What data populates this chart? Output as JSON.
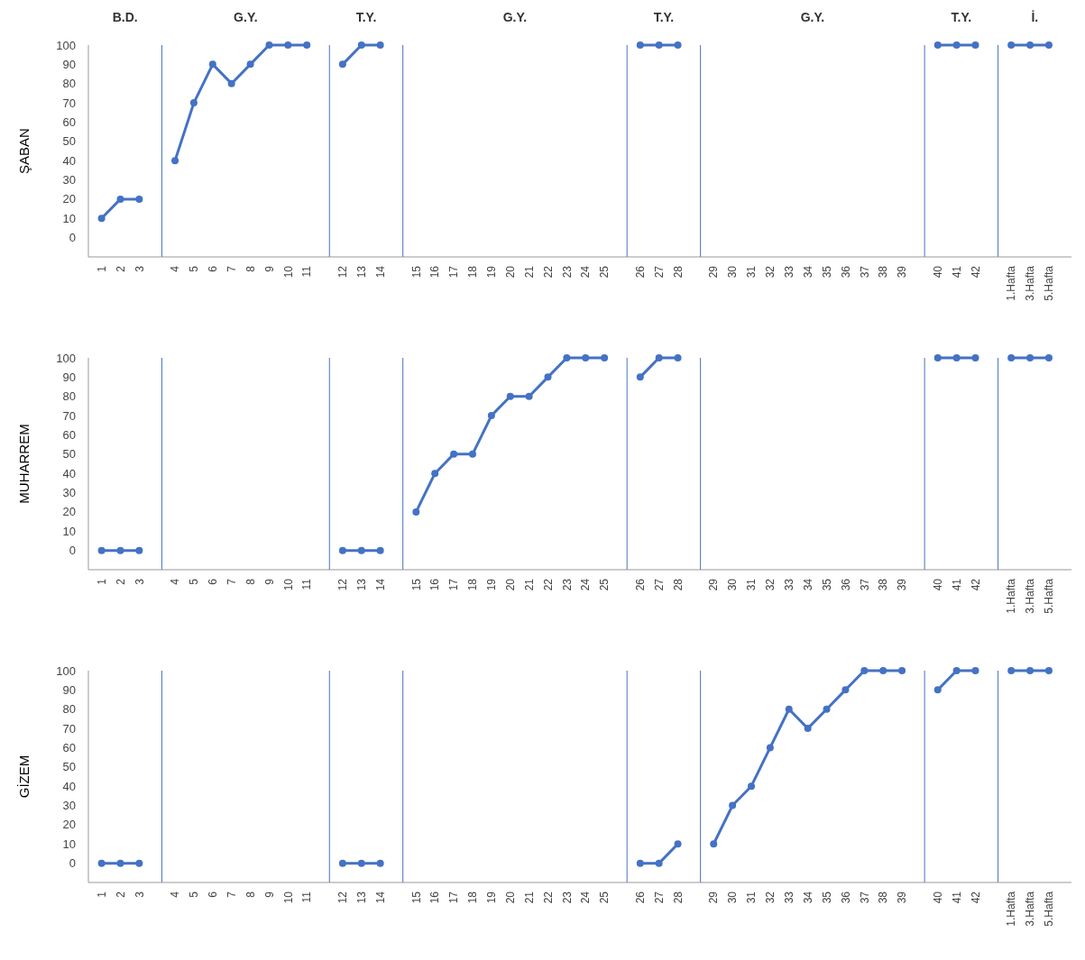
{
  "chart_data": [
    {
      "type": "line",
      "title": "B.D.",
      "ylabel": "ŞABAN",
      "categories": [
        "1",
        "2",
        "3"
      ],
      "series": [
        {
          "color": "#4472c4",
          "values": [
            10,
            20,
            20
          ]
        }
      ],
      "ylim": [
        -10,
        100
      ],
      "yticks": [
        0,
        10,
        20,
        30,
        40,
        50,
        60,
        70,
        80,
        90,
        100
      ],
      "marker": "circle"
    },
    {
      "type": "line",
      "title": "G.Y.",
      "categories": [
        "4",
        "5",
        "6",
        "7",
        "8",
        "9",
        "10",
        "11"
      ],
      "series": [
        {
          "color": "#4472c4",
          "values": [
            40,
            70,
            90,
            80,
            90,
            100,
            100,
            100
          ]
        }
      ],
      "ylim": [
        -10,
        100
      ],
      "yticks": [
        0,
        10,
        20,
        30,
        40,
        50,
        60,
        70,
        80,
        90,
        100
      ],
      "marker": "circle",
      "tick_labels": "x"
    },
    {
      "type": "line",
      "title": "T.Y.",
      "categories": [
        "12",
        "13",
        "14"
      ],
      "series": [
        {
          "color": "#4472c4",
          "values": [
            90,
            100,
            100
          ]
        }
      ],
      "ylim": [
        -10,
        100
      ],
      "yticks": [
        0,
        10,
        20,
        30,
        40,
        50,
        60,
        70,
        80,
        90,
        100
      ],
      "marker": "circle",
      "tick_labels": "x"
    },
    {
      "type": "line",
      "title": "G.Y.",
      "categories": [
        "15",
        "16",
        "17",
        "18",
        "19",
        "20",
        "21",
        "22",
        "23",
        "24",
        "25"
      ],
      "series": [
        {
          "color": "#4472c4",
          "values": [
            null,
            null,
            null,
            null,
            null,
            null,
            null,
            null,
            null,
            null,
            null
          ]
        }
      ],
      "ylim": [
        -10,
        100
      ],
      "yticks": [
        0,
        10,
        20,
        30,
        40,
        50,
        60,
        70,
        80,
        90,
        100
      ],
      "marker": "circle",
      "tick_labels": "x"
    },
    {
      "type": "line",
      "title": "T.Y.",
      "categories": [
        "26",
        "27",
        "28"
      ],
      "series": [
        {
          "color": "#4472c4",
          "values": [
            100,
            100,
            100
          ]
        }
      ],
      "ylim": [
        -10,
        100
      ],
      "yticks": [
        0,
        10,
        20,
        30,
        40,
        50,
        60,
        70,
        80,
        90,
        100
      ],
      "marker": "circle",
      "tick_labels": "x"
    },
    {
      "type": "line",
      "title": "G.Y.",
      "categories": [
        "29",
        "30",
        "31",
        "32",
        "33",
        "34",
        "35",
        "36",
        "37",
        "38",
        "39"
      ],
      "series": [
        {
          "color": "#4472c4",
          "values": [
            null,
            null,
            null,
            null,
            null,
            null,
            null,
            null,
            null,
            null,
            null
          ]
        }
      ],
      "ylim": [
        -10,
        100
      ],
      "yticks": [
        0,
        10,
        20,
        30,
        40,
        50,
        60,
        70,
        80,
        90,
        100
      ],
      "marker": "circle",
      "tick_labels": "x"
    },
    {
      "type": "line",
      "title": "T.Y.",
      "categories": [
        "40",
        "41",
        "42"
      ],
      "series": [
        {
          "color": "#4472c4",
          "values": [
            100,
            100,
            100
          ]
        }
      ],
      "ylim": [
        -10,
        100
      ],
      "yticks": [
        0,
        10,
        20,
        30,
        40,
        50,
        60,
        70,
        80,
        90,
        100
      ],
      "marker": "circle",
      "tick_labels": "x"
    },
    {
      "type": "line",
      "title": "İ.",
      "categories": [
        "1.Hafta",
        "3.Hafta",
        "5.Hafta"
      ],
      "series": [
        {
          "color": "#4472c4",
          "values": [
            100,
            100,
            100
          ]
        }
      ],
      "ylim": [
        -10,
        100
      ],
      "yticks": [
        0,
        10,
        20,
        30,
        40,
        50,
        60,
        70,
        80,
        90,
        100
      ],
      "marker": "circle",
      "tick_labels": "x"
    },
    {
      "type": "line",
      "ylabel": "MUHARREM",
      "categories": [
        "1",
        "2",
        "3"
      ],
      "series": [
        {
          "color": "#4472c4",
          "values": [
            0,
            0,
            0
          ]
        }
      ],
      "ylim": [
        -10,
        100
      ],
      "yticks": [
        0,
        10,
        20,
        30,
        40,
        50,
        60,
        70,
        80,
        90,
        100
      ],
      "marker": "circle"
    },
    {
      "type": "line",
      "categories": [
        "4",
        "5",
        "6",
        "7",
        "8",
        "9",
        "10",
        "11"
      ],
      "series": [
        {
          "color": "#4472c4",
          "values": [
            null,
            null,
            null,
            null,
            null,
            null,
            null,
            null
          ]
        }
      ],
      "ylim": [
        -10,
        100
      ],
      "yticks": [
        0,
        10,
        20,
        30,
        40,
        50,
        60,
        70,
        80,
        90,
        100
      ],
      "marker": "circle",
      "tick_labels": "x"
    },
    {
      "type": "line",
      "categories": [
        "12",
        "13",
        "14"
      ],
      "series": [
        {
          "color": "#4472c4",
          "values": [
            0,
            0,
            0
          ]
        }
      ],
      "ylim": [
        -10,
        100
      ],
      "yticks": [
        0,
        10,
        20,
        30,
        40,
        50,
        60,
        70,
        80,
        90,
        100
      ],
      "marker": "circle",
      "tick_labels": "x"
    },
    {
      "type": "line",
      "categories": [
        "15",
        "16",
        "17",
        "18",
        "19",
        "20",
        "21",
        "22",
        "23",
        "24",
        "25"
      ],
      "series": [
        {
          "color": "#4472c4",
          "values": [
            20,
            40,
            50,
            50,
            70,
            80,
            80,
            90,
            100,
            100,
            100
          ]
        }
      ],
      "ylim": [
        -10,
        100
      ],
      "yticks": [
        0,
        10,
        20,
        30,
        40,
        50,
        60,
        70,
        80,
        90,
        100
      ],
      "marker": "circle",
      "tick_labels": "x"
    },
    {
      "type": "line",
      "categories": [
        "26",
        "27",
        "28"
      ],
      "series": [
        {
          "color": "#4472c4",
          "values": [
            90,
            100,
            100
          ]
        }
      ],
      "ylim": [
        -10,
        100
      ],
      "yticks": [
        0,
        10,
        20,
        30,
        40,
        50,
        60,
        70,
        80,
        90,
        100
      ],
      "marker": "circle",
      "tick_labels": "x"
    },
    {
      "type": "line",
      "categories": [
        "29",
        "30",
        "31",
        "32",
        "33",
        "34",
        "35",
        "36",
        "37",
        "38",
        "39"
      ],
      "series": [
        {
          "color": "#4472c4",
          "values": [
            null,
            null,
            null,
            null,
            null,
            null,
            null,
            null,
            null,
            null,
            null
          ]
        }
      ],
      "ylim": [
        -10,
        100
      ],
      "yticks": [
        0,
        10,
        20,
        30,
        40,
        50,
        60,
        70,
        80,
        90,
        100
      ],
      "marker": "circle",
      "tick_labels": "x"
    },
    {
      "type": "line",
      "categories": [
        "40",
        "41",
        "42"
      ],
      "series": [
        {
          "color": "#4472c4",
          "values": [
            100,
            100,
            100
          ]
        }
      ],
      "ylim": [
        -10,
        100
      ],
      "yticks": [
        0,
        10,
        20,
        30,
        40,
        50,
        60,
        70,
        80,
        90,
        100
      ],
      "marker": "circle",
      "tick_labels": "x"
    },
    {
      "type": "line",
      "categories": [
        "1.Hafta",
        "3.Hafta",
        "5.Hafta"
      ],
      "series": [
        {
          "color": "#4472c4",
          "values": [
            100,
            100,
            100
          ]
        }
      ],
      "ylim": [
        -10,
        100
      ],
      "yticks": [
        0,
        10,
        20,
        30,
        40,
        50,
        60,
        70,
        80,
        90,
        100
      ],
      "marker": "circle",
      "tick_labels": "x"
    },
    {
      "type": "line",
      "ylabel": "GİZEM",
      "categories": [
        "1",
        "2",
        "3"
      ],
      "series": [
        {
          "color": "#4472c4",
          "values": [
            0,
            0,
            0
          ]
        }
      ],
      "ylim": [
        -10,
        100
      ],
      "yticks": [
        0,
        10,
        20,
        30,
        40,
        50,
        60,
        70,
        80,
        90,
        100
      ],
      "marker": "circle"
    },
    {
      "type": "line",
      "categories": [
        "4",
        "5",
        "6",
        "7",
        "8",
        "9",
        "10",
        "11"
      ],
      "series": [
        {
          "color": "#4472c4",
          "values": [
            null,
            null,
            null,
            null,
            null,
            null,
            null,
            null
          ]
        }
      ],
      "ylim": [
        -10,
        100
      ],
      "yticks": [
        0,
        10,
        20,
        30,
        40,
        50,
        60,
        70,
        80,
        90,
        100
      ],
      "marker": "circle",
      "tick_labels": "x"
    },
    {
      "type": "line",
      "categories": [
        "12",
        "13",
        "14"
      ],
      "series": [
        {
          "color": "#4472c4",
          "values": [
            0,
            0,
            0
          ]
        }
      ],
      "ylim": [
        -10,
        100
      ],
      "yticks": [
        0,
        10,
        20,
        30,
        40,
        50,
        60,
        70,
        80,
        90,
        100
      ],
      "marker": "circle",
      "tick_labels": "x"
    },
    {
      "type": "line",
      "categories": [
        "15",
        "16",
        "17",
        "18",
        "19",
        "20",
        "21",
        "22",
        "23",
        "24",
        "25"
      ],
      "series": [
        {
          "color": "#4472c4",
          "values": [
            null,
            null,
            null,
            null,
            null,
            null,
            null,
            null,
            null,
            null,
            null
          ]
        }
      ],
      "ylim": [
        -10,
        100
      ],
      "yticks": [
        0,
        10,
        20,
        30,
        40,
        50,
        60,
        70,
        80,
        90,
        100
      ],
      "marker": "circle",
      "tick_labels": "x"
    },
    {
      "type": "line",
      "categories": [
        "26",
        "27",
        "28"
      ],
      "series": [
        {
          "color": "#4472c4",
          "values": [
            0,
            0,
            10
          ]
        }
      ],
      "ylim": [
        -10,
        100
      ],
      "yticks": [
        0,
        10,
        20,
        30,
        40,
        50,
        60,
        70,
        80,
        90,
        100
      ],
      "marker": "circle",
      "tick_labels": "x"
    },
    {
      "type": "line",
      "categories": [
        "29",
        "30",
        "31",
        "32",
        "33",
        "34",
        "35",
        "36",
        "37",
        "38",
        "39"
      ],
      "series": [
        {
          "color": "#4472c4",
          "values": [
            10,
            30,
            40,
            60,
            80,
            70,
            80,
            90,
            100,
            100,
            100
          ]
        }
      ],
      "ylim": [
        -10,
        100
      ],
      "yticks": [
        0,
        10,
        20,
        30,
        40,
        50,
        60,
        70,
        80,
        90,
        100
      ],
      "marker": "circle",
      "tick_labels": "x"
    },
    {
      "type": "line",
      "categories": [
        "40",
        "41",
        "42"
      ],
      "series": [
        {
          "color": "#4472c4",
          "values": [
            90,
            100,
            100
          ]
        }
      ],
      "ylim": [
        -10,
        100
      ],
      "yticks": [
        0,
        10,
        20,
        30,
        40,
        50,
        60,
        70,
        80,
        90,
        100
      ],
      "marker": "circle",
      "tick_labels": "x"
    },
    {
      "type": "line",
      "categories": [
        "1.Hafta",
        "3.Hafta",
        "5.Hafta"
      ],
      "series": [
        {
          "color": "#4472c4",
          "values": [
            100,
            100,
            100
          ]
        }
      ],
      "ylim": [
        -10,
        100
      ],
      "yticks": [
        0,
        10,
        20,
        30,
        40,
        50,
        60,
        70,
        80,
        90,
        100
      ],
      "marker": "circle",
      "tick_labels": "x"
    }
  ]
}
